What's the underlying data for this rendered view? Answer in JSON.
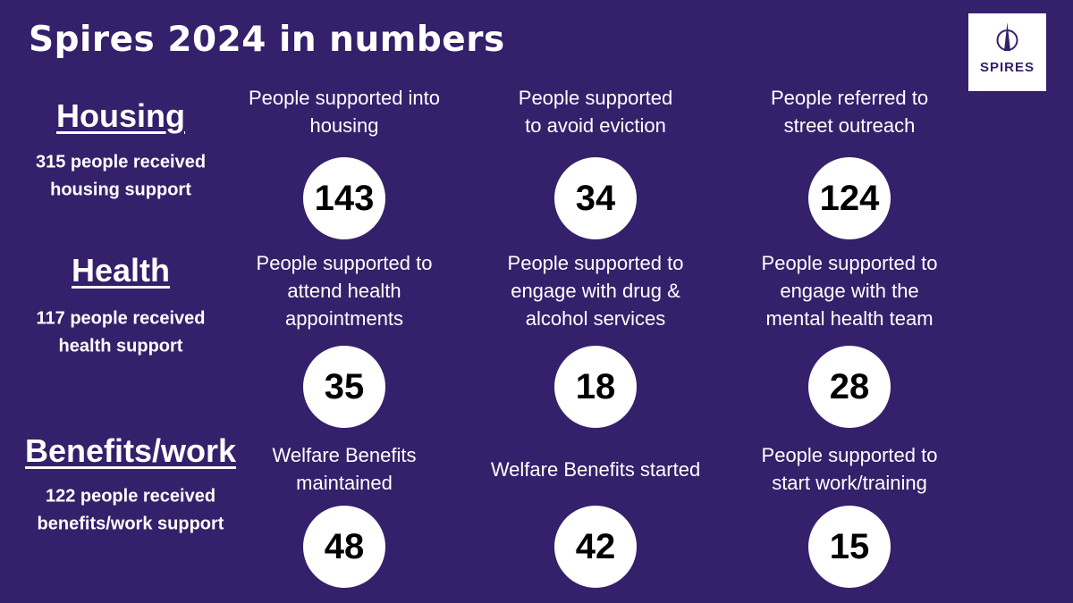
{
  "header": {
    "title": "Spires 2024 in numbers",
    "logo_text": "SPIRES"
  },
  "sections": [
    {
      "heading": "Housing",
      "summary": [
        "315 people received",
        "housing support"
      ],
      "stats": [
        {
          "label": [
            "People supported into",
            "housing"
          ],
          "value": 143
        },
        {
          "label": [
            "People supported",
            "to avoid eviction"
          ],
          "value": 34
        },
        {
          "label": [
            "People referred to",
            "street outreach"
          ],
          "value": 124
        }
      ]
    },
    {
      "heading": "Health",
      "summary": [
        "117 people received",
        "health support"
      ],
      "stats": [
        {
          "label": [
            "People supported to",
            "attend health",
            "appointments"
          ],
          "value": 35
        },
        {
          "label": [
            "People supported to",
            "engage with drug &",
            "alcohol services"
          ],
          "value": 18
        },
        {
          "label": [
            "People supported to",
            "engage with the",
            "mental health team"
          ],
          "value": 28
        }
      ]
    },
    {
      "heading": "Benefits/work",
      "summary": [
        "122 people received",
        "benefits/work support"
      ],
      "stats": [
        {
          "label": [
            "Welfare Benefits",
            "maintained"
          ],
          "value": 48
        },
        {
          "label": [
            "Welfare Benefits started"
          ],
          "value": 42
        },
        {
          "label": [
            "People supported to",
            "start work/training"
          ],
          "value": 15
        }
      ]
    }
  ]
}
